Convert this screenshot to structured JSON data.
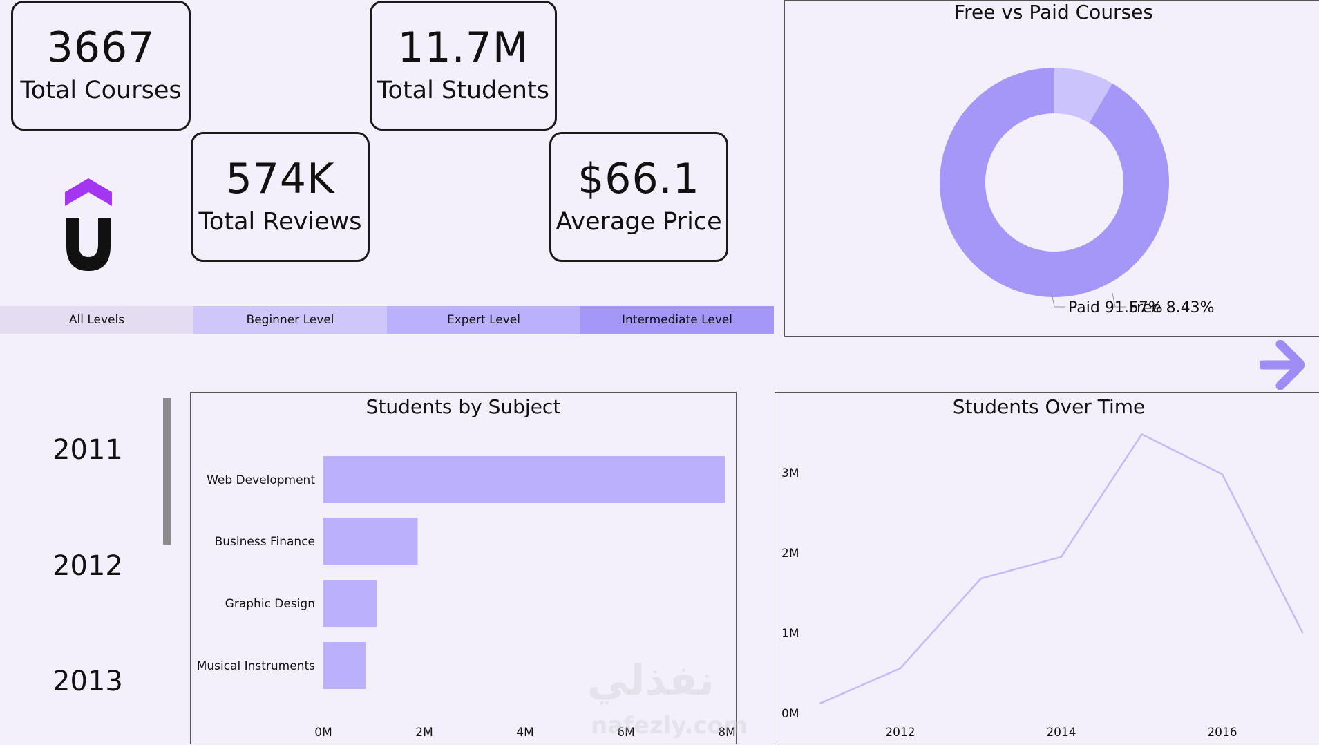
{
  "kpis": {
    "total_courses": {
      "value": "3667",
      "label": "Total Courses"
    },
    "total_students": {
      "value": "11.7M",
      "label": "Total Students"
    },
    "total_reviews": {
      "value": "574K",
      "label": "Total Reviews"
    },
    "average_price": {
      "value": "$66.1",
      "label": "Average Price"
    }
  },
  "logo": {
    "icon": "udemy-logo-icon",
    "accent": "#a435f0"
  },
  "level_slicer": [
    {
      "label": "All Levels",
      "color": "#e4dcf1"
    },
    {
      "label": "Beginner Level",
      "color": "#cfc7f9"
    },
    {
      "label": "Expert Level",
      "color": "#bbb0fb"
    },
    {
      "label": "Intermediate Level",
      "color": "#a597f7"
    }
  ],
  "year_slicer": [
    "2011",
    "2012",
    "2013"
  ],
  "nav": {
    "icon": "arrow-right-icon",
    "color": "#9d8df5"
  },
  "watermark": {
    "text": "نفذلي",
    "url": "nafezly.com"
  },
  "chart_data": [
    {
      "type": "pie",
      "title": "Free vs Paid Courses",
      "labels": [
        "Free",
        "Paid"
      ],
      "values": [
        8.43,
        91.57
      ],
      "value_labels": [
        "Free 8.43%",
        "Paid 91.57%"
      ],
      "colors": [
        "#cbc3fb",
        "#a597f7"
      ],
      "donut": true
    },
    {
      "type": "bar",
      "orientation": "horizontal",
      "title": "Students by Subject",
      "categories": [
        "Web Development",
        "Business Finance",
        "Graphic Design",
        "Musical Instruments"
      ],
      "values": [
        7960000,
        1870000,
        1060000,
        840000
      ],
      "xlim": [
        0,
        8000000
      ],
      "x_ticks": [
        0,
        2000000,
        4000000,
        6000000,
        8000000
      ],
      "x_tick_labels": [
        "0M",
        "2M",
        "4M",
        "6M",
        "8M"
      ],
      "color": "#bbb0fb"
    },
    {
      "type": "line",
      "title": "Students Over Time",
      "x": [
        2011,
        2012,
        2013,
        2014,
        2015,
        2016,
        2017
      ],
      "y": [
        120000,
        560000,
        1680000,
        1950000,
        3480000,
        2980000,
        1000000
      ],
      "ylim": [
        0,
        3700000
      ],
      "y_ticks": [
        0,
        1000000,
        2000000,
        3000000
      ],
      "y_tick_labels": [
        "0M",
        "1M",
        "2M",
        "3M"
      ],
      "x_ticks": [
        2012,
        2014,
        2016
      ],
      "x_tick_labels": [
        "2012",
        "2014",
        "2016"
      ],
      "color": "#c4baf8"
    }
  ]
}
